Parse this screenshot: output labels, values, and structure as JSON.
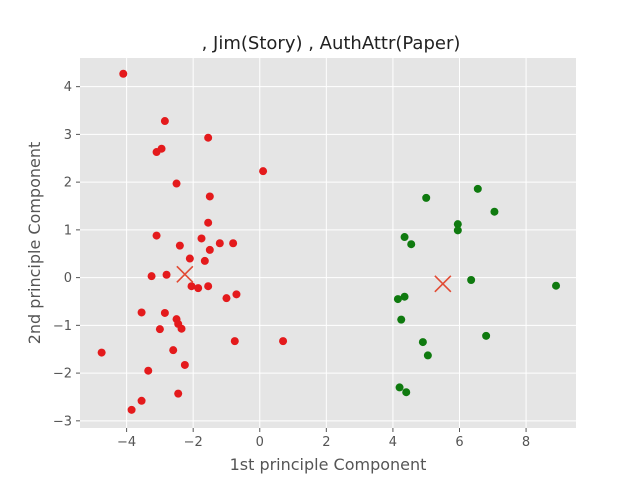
{
  "chart_data": {
    "type": "scatter",
    "title": ", Jim(Story) , AuthAttr(Paper)",
    "xlabel": "1st principle Component",
    "ylabel": "2nd principle Component",
    "xlim": [
      -5.4,
      9.5
    ],
    "ylim": [
      -3.15,
      4.6
    ],
    "xticks": [
      -4,
      -2,
      0,
      2,
      4,
      6,
      8
    ],
    "yticks": [
      -3,
      -2,
      -1,
      0,
      1,
      2,
      3,
      4
    ],
    "grid": true,
    "colors": {
      "background": "#e5e5e5",
      "grid": "#ffffff",
      "cluster_1": "#e41a1c",
      "cluster_2": "#0f7a0f",
      "centroid": "#e24a33"
    },
    "series": [
      {
        "color": "#e41a1c",
        "points": [
          [
            -4.1,
            4.27
          ],
          [
            -2.85,
            3.28
          ],
          [
            -1.55,
            2.93
          ],
          [
            -2.95,
            2.7
          ],
          [
            -3.1,
            2.63
          ],
          [
            -2.5,
            1.97
          ],
          [
            0.1,
            2.23
          ],
          [
            -1.5,
            1.7
          ],
          [
            -1.55,
            1.15
          ],
          [
            -3.1,
            0.88
          ],
          [
            -1.75,
            0.82
          ],
          [
            -2.4,
            0.67
          ],
          [
            -1.2,
            0.72
          ],
          [
            -0.8,
            0.72
          ],
          [
            -1.5,
            0.58
          ],
          [
            -2.1,
            0.4
          ],
          [
            -1.65,
            0.35
          ],
          [
            -3.25,
            0.03
          ],
          [
            -2.8,
            0.06
          ],
          [
            -2.05,
            -0.18
          ],
          [
            -1.85,
            -0.22
          ],
          [
            -1.55,
            -0.18
          ],
          [
            -0.7,
            -0.35
          ],
          [
            -1.0,
            -0.43
          ],
          [
            -3.55,
            -0.73
          ],
          [
            -2.85,
            -0.74
          ],
          [
            -2.5,
            -0.87
          ],
          [
            -2.45,
            -0.97
          ],
          [
            -2.35,
            -1.07
          ],
          [
            -3.0,
            -1.08
          ],
          [
            -0.75,
            -1.33
          ],
          [
            0.7,
            -1.33
          ],
          [
            -2.6,
            -1.52
          ],
          [
            -4.75,
            -1.57
          ],
          [
            -2.25,
            -1.83
          ],
          [
            -3.35,
            -1.95
          ],
          [
            -2.45,
            -2.43
          ],
          [
            -3.55,
            -2.58
          ],
          [
            -3.85,
            -2.77
          ]
        ]
      },
      {
        "color": "#0f7a0f",
        "points": [
          [
            6.55,
            1.86
          ],
          [
            5.0,
            1.67
          ],
          [
            7.05,
            1.38
          ],
          [
            5.95,
            1.12
          ],
          [
            5.95,
            0.99
          ],
          [
            4.35,
            0.85
          ],
          [
            4.55,
            0.7
          ],
          [
            6.35,
            -0.05
          ],
          [
            8.9,
            -0.17
          ],
          [
            4.35,
            -0.4
          ],
          [
            4.15,
            -0.45
          ],
          [
            4.25,
            -0.88
          ],
          [
            6.8,
            -1.22
          ],
          [
            4.9,
            -1.35
          ],
          [
            5.05,
            -1.63
          ],
          [
            4.2,
            -2.3
          ],
          [
            4.4,
            -2.4
          ]
        ]
      }
    ],
    "centroids": [
      [
        -2.25,
        0.07
      ],
      [
        5.5,
        -0.13
      ]
    ]
  }
}
